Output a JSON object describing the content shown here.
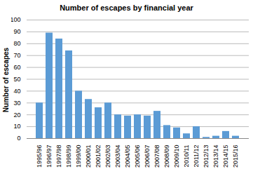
{
  "chart_data": {
    "type": "bar",
    "title": "Number of escapes by financial year",
    "y_label": "Number of escapes",
    "categories": [
      "1995/96",
      "1996/97",
      "1997/98",
      "1998/99",
      "1999/00",
      "2000/01",
      "2001/02",
      "2002/03",
      "2003/04",
      "2004/05",
      "2005/06",
      "2006/07",
      "2007/08",
      "2008/09",
      "2009/10",
      "2010/11",
      "2011/12",
      "2012/13",
      "2013/14",
      "2014/15",
      "2015/16"
    ],
    "values": [
      30,
      89,
      84,
      74,
      40,
      33,
      26,
      30,
      20,
      19,
      20,
      19,
      23,
      11,
      9,
      4,
      10,
      1,
      2,
      6,
      2
    ],
    "color": "#5b9bd5",
    "ylim": [
      0,
      100
    ],
    "yticks": [
      0,
      10,
      20,
      30,
      40,
      50,
      60,
      70,
      80,
      90,
      100
    ],
    "grid": true
  }
}
